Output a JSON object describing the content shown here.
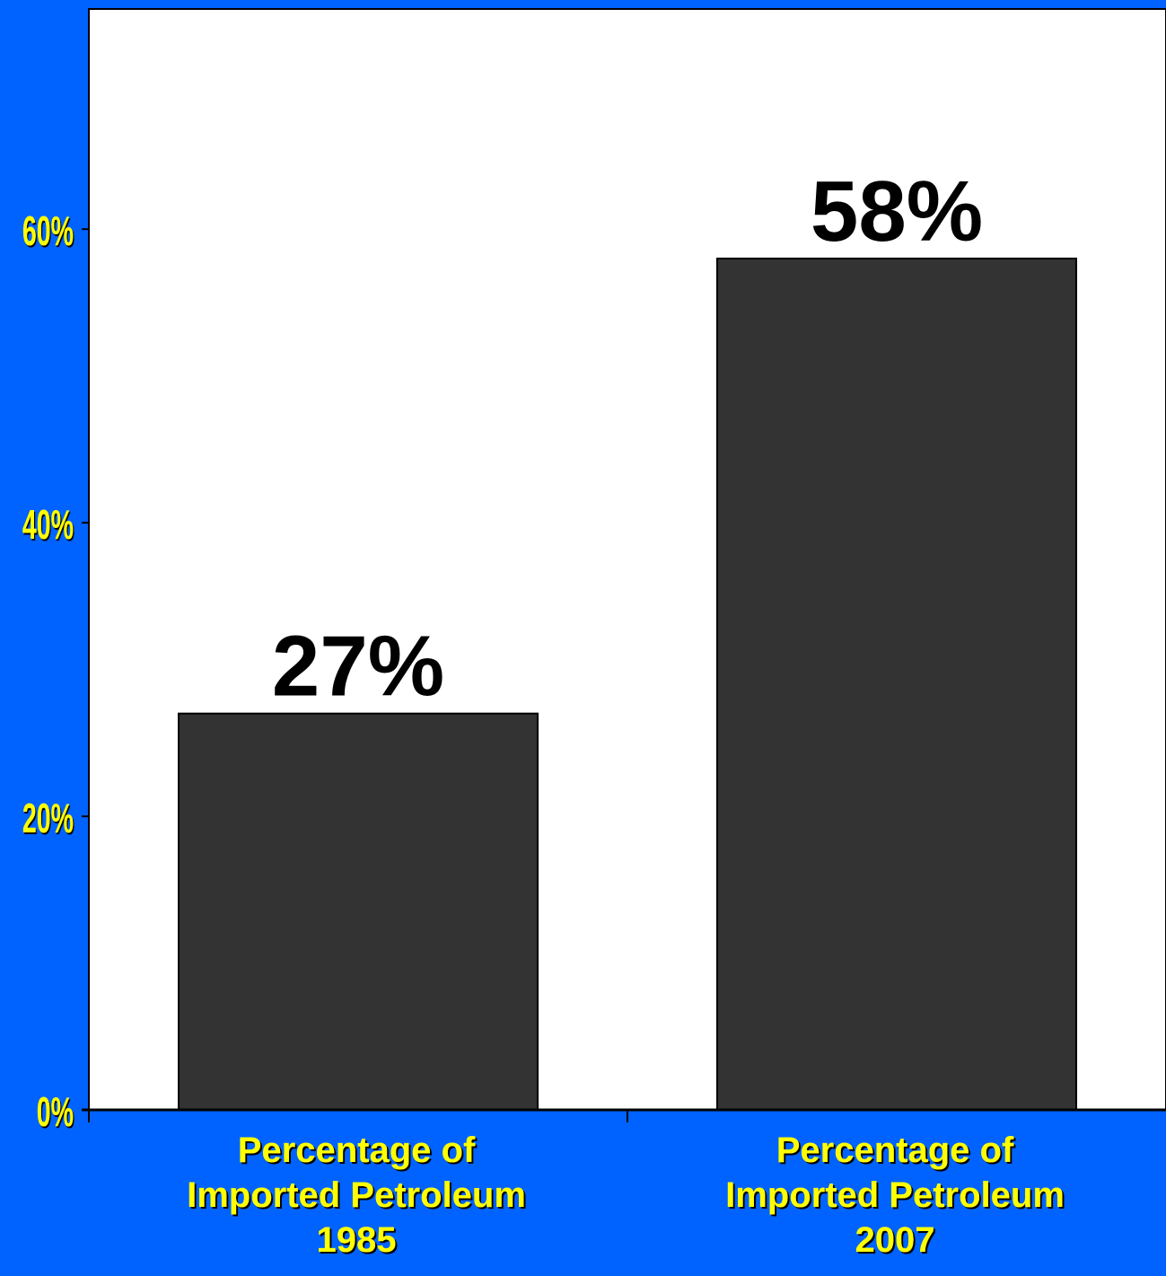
{
  "colors": {
    "background": "#0063ff",
    "plot_area": "#ffffff",
    "bar": "#333333",
    "tick_label": "#ffff00",
    "data_label": "#000000",
    "category_label": "#ffff00",
    "label_shadow": "#000000"
  },
  "chart_data": {
    "type": "bar",
    "categories": [
      [
        "Percentage of",
        "Imported Petroleum",
        "1985"
      ],
      [
        "Percentage of",
        "Imported Petroleum",
        "2007"
      ]
    ],
    "values": [
      27,
      58
    ],
    "data_labels": [
      "27%",
      "58%"
    ],
    "ylim": [
      0,
      75
    ],
    "y_ticks": [
      0,
      20,
      40,
      60
    ],
    "y_tick_labels": [
      "0%",
      "20%",
      "40%",
      "60%"
    ],
    "grid": false,
    "legend": "none"
  }
}
